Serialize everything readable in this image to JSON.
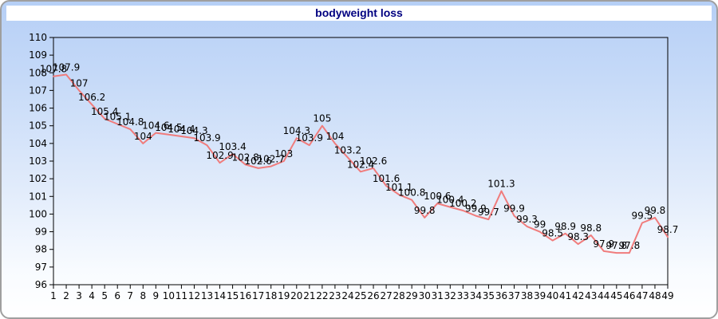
{
  "title": "bodyweight loss",
  "chart_data": {
    "type": "line",
    "title": "bodyweight loss",
    "x": [
      1,
      2,
      3,
      4,
      5,
      6,
      7,
      8,
      9,
      10,
      11,
      12,
      13,
      14,
      15,
      16,
      17,
      18,
      19,
      20,
      21,
      22,
      23,
      24,
      25,
      26,
      27,
      28,
      29,
      30,
      31,
      32,
      33,
      34,
      35,
      36,
      37,
      38,
      39,
      40,
      41,
      42,
      43,
      44,
      45,
      46,
      47,
      48,
      49
    ],
    "values": [
      107.8,
      107.9,
      107,
      106.2,
      105.4,
      105.1,
      104.8,
      104,
      104.6,
      104.5,
      104.4,
      104.3,
      103.9,
      102.9,
      103.4,
      102.8,
      102.6,
      102.7,
      103,
      104.3,
      103.9,
      105,
      104,
      103.2,
      102.4,
      102.6,
      101.6,
      101.1,
      100.8,
      99.8,
      100.6,
      100.4,
      100.2,
      99.9,
      99.7,
      101.3,
      99.9,
      99.3,
      99,
      98.5,
      98.9,
      98.3,
      98.8,
      97.9,
      97.8,
      97.8,
      99.5,
      99.8,
      98.7
    ],
    "point_labels": [
      "107.8",
      "107.9",
      "107",
      "106.2",
      "105.4",
      "105.1",
      "104.8",
      "104",
      "104.6",
      "104.5",
      "104.4",
      "104.3",
      "103.9",
      "102.9",
      "103.4",
      "102.8",
      "102.6",
      "102.7",
      "103",
      "104.3",
      "103.9",
      "105",
      "104",
      "103.2",
      "102.4",
      "102.6",
      "101.6",
      "101.1",
      "100.8",
      "99.8",
      "100.6",
      "100.4",
      "100.2",
      "99.9",
      "99.7",
      "101.3",
      "99.9",
      "99.3",
      "99",
      "98.5",
      "98.9",
      "98.3",
      "98.8",
      "97.9",
      "97.8",
      "97.8",
      "99.5",
      "99.8",
      "98.7"
    ],
    "ylim": [
      96,
      110
    ],
    "y_ticks": [
      110,
      109,
      108,
      107,
      106,
      105,
      104,
      103,
      102,
      101,
      100,
      99,
      98,
      97,
      96
    ],
    "xlabel": "",
    "ylabel": "",
    "grid": false,
    "legend": "none",
    "line_color": "#f07c7c",
    "axis_color": "#000000",
    "label_color": "#000000",
    "title_color": "#000080"
  }
}
